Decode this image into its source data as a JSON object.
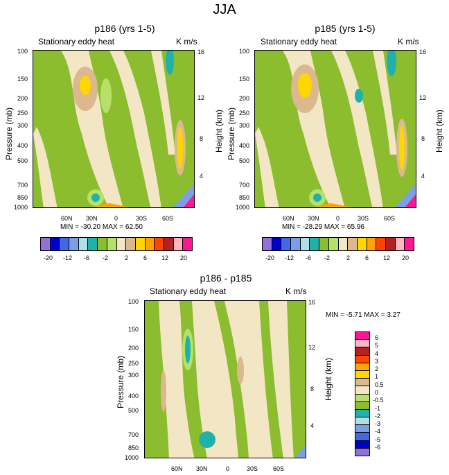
{
  "title": "JJA",
  "colors": {
    "palette": [
      "#9370db",
      "#0000cd",
      "#4169e1",
      "#7b9fe6",
      "#b0e0e6",
      "#20b2aa",
      "#8bbd2f",
      "#b7e06a",
      "#f3e6c4",
      "#dcb88e",
      "#ffd700",
      "#ffa500",
      "#ff4500",
      "#b22222",
      "#ffb6c1",
      "#ff1493"
    ],
    "zero_band": "#f3e6c4",
    "background_band": "#8bbd2f"
  },
  "chart_data": [
    {
      "type": "contour",
      "title": "p186 (yrs 1-5)",
      "subtitle": "Stationary eddy heat",
      "units": "K m/s",
      "ylabel": "Pressure (mb)",
      "ylabel_right": "Height (km)",
      "x_ticks": [
        "60N",
        "30N",
        "0",
        "30S",
        "60S"
      ],
      "y_ticks": [
        "100",
        "150",
        "200",
        "250",
        "300",
        "400",
        "500",
        "700",
        "850",
        "1000"
      ],
      "y_ticks_right": [
        "16",
        "12",
        "8",
        "4"
      ],
      "min_max": "MIN = -30.20   MAX =  62.50",
      "colorbar_ticks": [
        "-20",
        "-12",
        "-6",
        "-2",
        "2",
        "6",
        "12",
        "20"
      ]
    },
    {
      "type": "contour",
      "title": "p185 (yrs 1-5)",
      "subtitle": "Stationary eddy heat",
      "units": "K m/s",
      "ylabel": "Pressure (mb)",
      "ylabel_right": "Height (km)",
      "x_ticks": [
        "60N",
        "30N",
        "0",
        "30S",
        "60S"
      ],
      "y_ticks": [
        "100",
        "150",
        "200",
        "250",
        "300",
        "400",
        "500",
        "700",
        "850",
        "1000"
      ],
      "y_ticks_right": [
        "16",
        "12",
        "8",
        "4"
      ],
      "min_max": "MIN = -28.29   MAX =  65.96",
      "colorbar_ticks": [
        "-20",
        "-12",
        "-6",
        "-2",
        "2",
        "6",
        "12",
        "20"
      ]
    },
    {
      "type": "contour",
      "title": "p186 - p185",
      "subtitle": "Stationary eddy heat",
      "units": "K m/s",
      "ylabel": "Pressure (mb)",
      "ylabel_right": "Height (km)",
      "x_ticks": [
        "60N",
        "30N",
        "0",
        "30S",
        "60S"
      ],
      "y_ticks": [
        "100",
        "150",
        "200",
        "250",
        "300",
        "400",
        "500",
        "700",
        "850",
        "1000"
      ],
      "y_ticks_right": [
        "16",
        "12",
        "8",
        "4"
      ],
      "min_max": "MIN =  -5.71   MAX =   3.27",
      "colorbar_ticks": [
        "6",
        "5",
        "4",
        "3",
        "2",
        "1",
        "0.5",
        "0",
        "-0.5",
        "-1",
        "-2",
        "-3",
        "-4",
        "-5",
        "-6"
      ]
    }
  ]
}
